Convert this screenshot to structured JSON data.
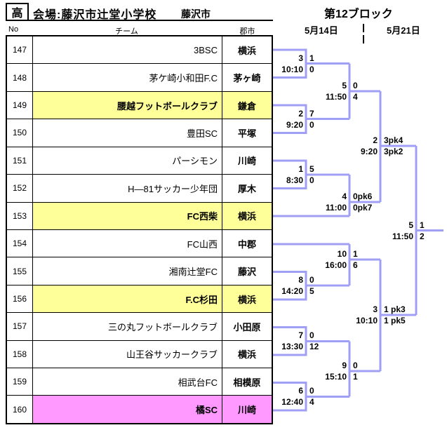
{
  "header": {
    "category_badge": "高",
    "venue": "会場:藤沢市辻堂小学校",
    "venue_city": "藤沢市",
    "block_title": "第12ブロック",
    "date_left": "5月14日",
    "date_right": "5月21日"
  },
  "table": {
    "columns": {
      "no": "No",
      "team": "チーム",
      "city": "郡市"
    },
    "rows": [
      {
        "no": "147",
        "team": "3BSC",
        "city": "横浜",
        "highlight": "none"
      },
      {
        "no": "148",
        "team": "茅ケ崎小和田F.C",
        "city": "茅ヶ崎",
        "highlight": "none"
      },
      {
        "no": "149",
        "team": "腰越フットボールクラブ",
        "city": "鎌倉",
        "highlight": "yellow"
      },
      {
        "no": "150",
        "team": "豊田SC",
        "city": "平塚",
        "highlight": "none"
      },
      {
        "no": "151",
        "team": "パーシモン",
        "city": "川崎",
        "highlight": "none"
      },
      {
        "no": "152",
        "team": "H―81サッカー少年団",
        "city": "厚木",
        "highlight": "none"
      },
      {
        "no": "153",
        "team": "FC西柴",
        "city": "横浜",
        "highlight": "yellow"
      },
      {
        "no": "154",
        "team": "FC山西",
        "city": "中郡",
        "highlight": "none"
      },
      {
        "no": "155",
        "team": "湘南辻堂FC",
        "city": "藤沢",
        "highlight": "none"
      },
      {
        "no": "156",
        "team": "F.C杉田",
        "city": "横浜",
        "highlight": "yellow"
      },
      {
        "no": "157",
        "team": "三の丸フットボールクラブ",
        "city": "小田原",
        "highlight": "none"
      },
      {
        "no": "158",
        "team": "山王谷サッカークラブ",
        "city": "横浜",
        "highlight": "none"
      },
      {
        "no": "159",
        "team": "相武台FC",
        "city": "相模原",
        "highlight": "none"
      },
      {
        "no": "160",
        "team": "橘SC",
        "city": "川崎",
        "highlight": "pink"
      }
    ]
  },
  "bracket": {
    "matches": [
      {
        "id": "m3",
        "round": "round1",
        "no": "3",
        "time": "10:10",
        "score_top": "1",
        "score_bottom": "0"
      },
      {
        "id": "m2",
        "round": "round1",
        "no": "2",
        "time": "9:20",
        "score_top": "7",
        "score_bottom": "0"
      },
      {
        "id": "m5",
        "round": "round2",
        "no": "5",
        "time": "11:50",
        "score_top": "0",
        "score_bottom": "4"
      },
      {
        "id": "m1",
        "round": "round1",
        "no": "1",
        "time": "8:30",
        "score_top": "5",
        "score_bottom": "0"
      },
      {
        "id": "m4",
        "round": "round2",
        "no": "4",
        "time": "11:00",
        "score_top": "0pk6",
        "score_bottom": "0pk7"
      },
      {
        "id": "sf1",
        "round": "semifinal",
        "no": "2",
        "time": "9:20",
        "score_top": "3pk4",
        "score_bottom": "3pk2"
      },
      {
        "id": "m10",
        "round": "round2",
        "no": "10",
        "time": "16:00",
        "score_top": "1",
        "score_bottom": "6"
      },
      {
        "id": "m8",
        "round": "round1",
        "no": "8",
        "time": "14:20",
        "score_top": "0",
        "score_bottom": "5"
      },
      {
        "id": "sf2",
        "round": "semifinal",
        "no": "3",
        "time": "10:10",
        "score_top": "1 pk3",
        "score_bottom": "1 pk5"
      },
      {
        "id": "m7",
        "round": "round1",
        "no": "7",
        "time": "13:30",
        "score_top": "0",
        "score_bottom": "12"
      },
      {
        "id": "m6",
        "round": "round1",
        "no": "6",
        "time": "12:40",
        "score_top": "0",
        "score_bottom": "4"
      },
      {
        "id": "m9",
        "round": "round2",
        "no": "9",
        "time": "15:10",
        "score_top": "0",
        "score_bottom": "1"
      },
      {
        "id": "final",
        "round": "final",
        "no": "5",
        "time": "11:50",
        "score_top": "1",
        "score_bottom": "2"
      }
    ]
  },
  "colors": {
    "highlight_yellow": "#FFFF99",
    "highlight_pink": "#FF99FF",
    "bracket_line": "#9F9FF5"
  }
}
